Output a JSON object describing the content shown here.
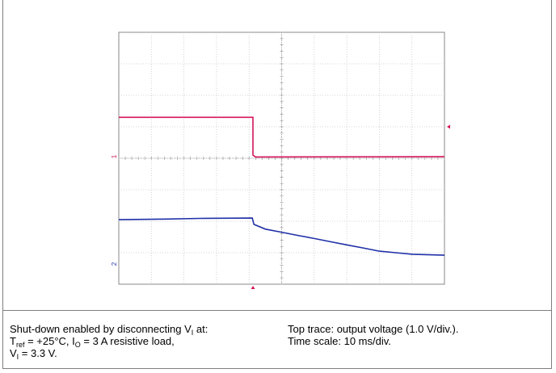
{
  "chart_data": {
    "type": "line",
    "title": "",
    "xlabel": "",
    "ylabel": "",
    "divisions": {
      "x": 10,
      "y": 8
    },
    "xlim": [
      0,
      10
    ],
    "ylim": [
      0,
      8
    ],
    "grid": true,
    "series": [
      {
        "channel_marker": "1",
        "color": "#d4145a",
        "points": [
          [
            0,
            5.3
          ],
          [
            4.12,
            5.3
          ],
          [
            4.12,
            4.1
          ],
          [
            4.2,
            4.04
          ],
          [
            10,
            4.05
          ]
        ]
      },
      {
        "channel_marker": "2",
        "color": "#1f2fa8",
        "points": [
          [
            0,
            2.05
          ],
          [
            1.5,
            2.07
          ],
          [
            2.5,
            2.09
          ],
          [
            4.1,
            2.1
          ],
          [
            4.15,
            1.9
          ],
          [
            4.5,
            1.75
          ],
          [
            5.0,
            1.65
          ],
          [
            5.5,
            1.55
          ],
          [
            6.0,
            1.45
          ],
          [
            6.5,
            1.35
          ],
          [
            7.0,
            1.25
          ],
          [
            7.5,
            1.15
          ],
          [
            8.0,
            1.05
          ],
          [
            8.5,
            1.0
          ],
          [
            9.0,
            0.95
          ],
          [
            10,
            0.92
          ]
        ]
      }
    ],
    "trigger_marker_color": "#d4145a"
  },
  "caption": {
    "left": {
      "line1_text": "Shut-down enabled by disconnecting V",
      "line1_sub": "I",
      "line1_end": " at:",
      "line2_t": "T",
      "line2_tsub": "ref",
      "line2_mid": "  = +25°C, I",
      "line2_osub": "O",
      "line2_end": " = 3 A resistive load,",
      "line3_v": "V",
      "line3_vsub": "I",
      "line3_end": "  = 3.3 V."
    },
    "right": {
      "line1": "Top trace: output voltage (1.0 V/div.).",
      "line2": "Time scale: 10 ms/div."
    }
  }
}
